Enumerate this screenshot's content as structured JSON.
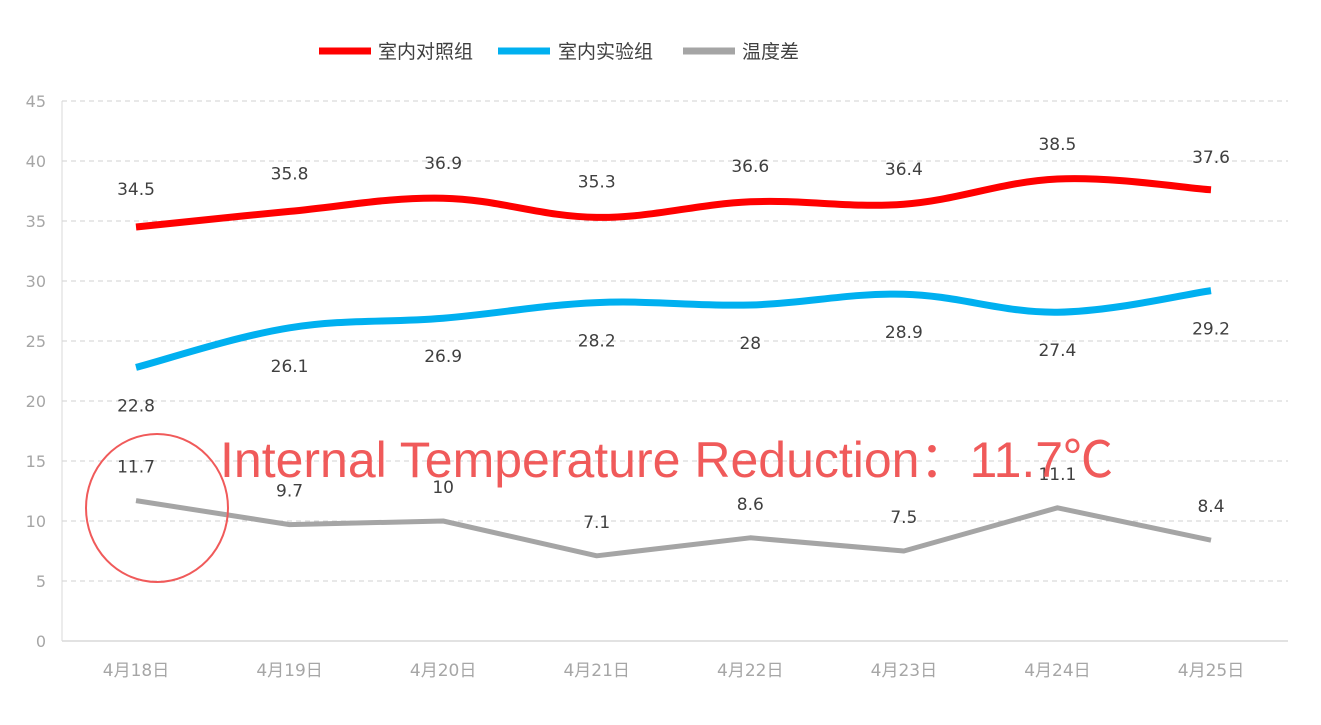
{
  "chart_data": {
    "type": "line",
    "categories": [
      "4月18日",
      "4月19日",
      "4月20日",
      "4月21日",
      "4月22日",
      "4月23日",
      "4月24日",
      "4月25日"
    ],
    "series": [
      {
        "name": "室内对照组",
        "color": "#ff0000",
        "smooth": true,
        "values": [
          34.5,
          35.8,
          36.9,
          35.3,
          36.6,
          36.4,
          38.5,
          37.6
        ],
        "labels": [
          "34.5",
          "35.8",
          "36.9",
          "35.3",
          "36.6",
          "36.4",
          "38.5",
          "37.6"
        ]
      },
      {
        "name": "室内实验组",
        "color": "#00b0f0",
        "smooth": true,
        "values": [
          22.8,
          26.1,
          26.9,
          28.2,
          28,
          28.9,
          27.4,
          29.2
        ],
        "labels": [
          "22.8",
          "26.1",
          "26.9",
          "28.2",
          "28",
          "28.9",
          "27.4",
          "29.2"
        ]
      },
      {
        "name": "温度差",
        "color": "#a5a5a5",
        "smooth": false,
        "values": [
          11.7,
          9.7,
          10,
          7.1,
          8.6,
          7.5,
          11.1,
          8.4
        ],
        "labels": [
          "11.7",
          "9.7",
          "10",
          "7.1",
          "8.6",
          "7.5",
          "11.1",
          "8.4"
        ]
      }
    ],
    "ylim": [
      0,
      45
    ],
    "yticks": [
      "0",
      "5",
      "10",
      "15",
      "20",
      "25",
      "30",
      "35",
      "40",
      "45"
    ],
    "grid": true,
    "legend_position": "top-left",
    "annotation": {
      "text": "Internal Temperature Reduction：11.7℃",
      "color": "#f05a5a",
      "circled_category": "4月18日"
    }
  }
}
